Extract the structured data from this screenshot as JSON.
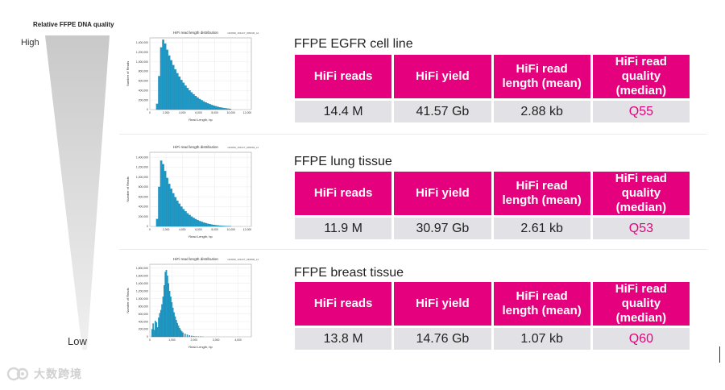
{
  "quality_axis": {
    "title": "Relative FFPE DNA quality",
    "high_label": "High",
    "low_label": "Low"
  },
  "columns": {
    "reads": "HiFi reads",
    "yield": "HiFi yield",
    "length": "HiFi read length (mean)",
    "quality": "HiFi read quality (median)"
  },
  "samples": [
    {
      "name": "FFPE EGFR cell line",
      "reads": "14.4 M",
      "yield": "41.57 Gb",
      "length": "2.88 kb",
      "quality": "Q55"
    },
    {
      "name": "FFPE lung tissue",
      "reads": "11.9 M",
      "yield": "30.97 Gb",
      "length": "2.61 kb",
      "quality": "Q53"
    },
    {
      "name": "FFPE breast tissue",
      "reads": "13.8 M",
      "yield": "14.76 Gb",
      "length": "1.07 kb",
      "quality": "Q60"
    }
  ],
  "chart_data": [
    {
      "type": "bar",
      "title": "HiFi read length distribution",
      "tag": "m64036_191217_005246_s4",
      "xlabel": "Read Length, bp",
      "ylabel": "Number of Reads",
      "xticks": [
        "0",
        "2,000",
        "4,000",
        "6,000",
        "8,000",
        "10,000",
        "12,000"
      ],
      "yticks": [
        "0",
        "200,000",
        "400,000",
        "600,000",
        "800,000",
        "1,000,000",
        "1,200,000",
        "1,400,000"
      ],
      "xlim": [
        0,
        12500
      ],
      "ylim": [
        0,
        1500000
      ],
      "x": [
        900,
        1150,
        1400,
        1650,
        1900,
        2150,
        2400,
        2650,
        2900,
        3150,
        3400,
        3650,
        3900,
        4150,
        4400,
        4650,
        4900,
        5150,
        5400,
        5650,
        5900,
        6150,
        6400,
        6650,
        6900,
        7150,
        7400,
        7650,
        7900,
        8150,
        8400,
        8650,
        8900,
        9150,
        9400,
        9650,
        9900
      ],
      "values": [
        120000,
        700000,
        1300000,
        1460000,
        1380000,
        1250000,
        1130000,
        1030000,
        930000,
        840000,
        760000,
        690000,
        620000,
        560000,
        500000,
        450000,
        400000,
        360000,
        320000,
        285000,
        250000,
        220000,
        195000,
        170000,
        150000,
        130000,
        112000,
        96000,
        82000,
        70000,
        58000,
        48000,
        40000,
        32000,
        25000,
        19000,
        14000
      ]
    },
    {
      "type": "bar",
      "title": "HiFi read length distribution",
      "tag": "m64036_191217_005003_s1",
      "xlabel": "Read Length, bp",
      "ylabel": "Number of Reads",
      "xticks": [
        "0",
        "2,000",
        "4,000",
        "6,000",
        "8,000",
        "10,000",
        "12,000"
      ],
      "yticks": [
        "0",
        "200,000",
        "400,000",
        "600,000",
        "800,000",
        "1,000,000",
        "1,200,000",
        "1,400,000"
      ],
      "xlim": [
        0,
        12500
      ],
      "ylim": [
        0,
        1500000
      ],
      "x": [
        900,
        1150,
        1400,
        1650,
        1900,
        2150,
        2400,
        2650,
        2900,
        3150,
        3400,
        3650,
        3900,
        4150,
        4400,
        4650,
        4900,
        5150,
        5400,
        5650,
        5900,
        6150,
        6400,
        6650,
        6900,
        7150,
        7400,
        7650,
        7900,
        8150,
        8400,
        8650,
        8900,
        9150,
        9400,
        9650,
        9900
      ],
      "values": [
        150000,
        800000,
        1330000,
        1260000,
        1120000,
        980000,
        860000,
        760000,
        670000,
        590000,
        520000,
        460000,
        400000,
        350000,
        305000,
        265000,
        230000,
        200000,
        172000,
        148000,
        127000,
        108000,
        92000,
        78000,
        66000,
        55000,
        46000,
        38000,
        31000,
        25000,
        20000,
        16000,
        12000,
        9000,
        7000,
        5000,
        3500
      ]
    },
    {
      "type": "bar",
      "title": "HiFi read length distribution",
      "tag": "m64036_191217_040830_s1",
      "xlabel": "Read Length, bp",
      "ylabel": "Number of Reads",
      "xticks": [
        "0",
        "1,000",
        "2,000",
        "3,000",
        "4,000"
      ],
      "yticks": [
        "0",
        "200,000",
        "400,000",
        "600,000",
        "800,000",
        "1,000,000",
        "1,200,000",
        "1,400,000",
        "1,600,000",
        "1,800,000"
      ],
      "xlim": [
        0,
        4600
      ],
      "ylim": [
        0,
        1900000
      ],
      "x": [
        100,
        150,
        200,
        250,
        300,
        350,
        400,
        450,
        500,
        550,
        600,
        650,
        700,
        750,
        800,
        850,
        900,
        950,
        1000,
        1050,
        1100,
        1150,
        1200,
        1250,
        1300,
        1350,
        1400,
        1450,
        1500,
        1600,
        1700,
        1800,
        1900,
        2000,
        2100,
        2200,
        2300,
        2400
      ],
      "values": [
        200000,
        350000,
        180000,
        420000,
        380000,
        250000,
        500000,
        620000,
        700000,
        850000,
        1050000,
        1350000,
        1700000,
        1750000,
        1600000,
        1400000,
        1200000,
        1050000,
        900000,
        760000,
        640000,
        530000,
        440000,
        360000,
        290000,
        230000,
        180000,
        140000,
        110000,
        80000,
        55000,
        38000,
        25000,
        16000,
        10000,
        6000,
        3500,
        2000
      ]
    }
  ],
  "watermark": {
    "text": "大数跨境"
  },
  "colors": {
    "accent": "#e5007e",
    "cell_bg": "#e2e2e6",
    "bar": "#1d9ac7"
  }
}
